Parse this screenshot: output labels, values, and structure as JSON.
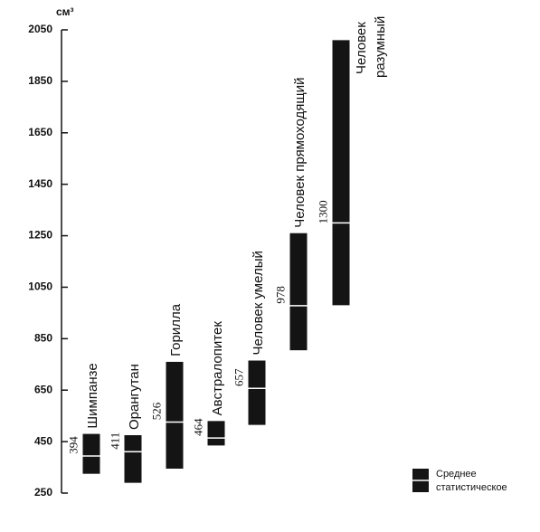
{
  "chart_data": {
    "type": "range-bar",
    "unit": "см³",
    "categories": [
      [
        "Шимпанзе"
      ],
      [
        "Орангутан"
      ],
      [
        "Горилла"
      ],
      [
        "Австралопитек"
      ],
      [
        "Человек умелый"
      ],
      [
        "Человек прямоходящий"
      ],
      [
        "Человек",
        "разумный"
      ]
    ],
    "low": [
      325,
      290,
      345,
      435,
      515,
      805,
      980
    ],
    "high": [
      480,
      475,
      760,
      530,
      765,
      1260,
      2010
    ],
    "mean": [
      394,
      411,
      526,
      464,
      657,
      978,
      1300
    ],
    "color": "#141414",
    "ylim": [
      250,
      2050
    ],
    "yticks": [
      250,
      450,
      650,
      850,
      1050,
      1250,
      1450,
      1650,
      1850,
      2050
    ],
    "legend": [
      "Среднее",
      "статистическое"
    ],
    "legend_position": "lower right"
  }
}
